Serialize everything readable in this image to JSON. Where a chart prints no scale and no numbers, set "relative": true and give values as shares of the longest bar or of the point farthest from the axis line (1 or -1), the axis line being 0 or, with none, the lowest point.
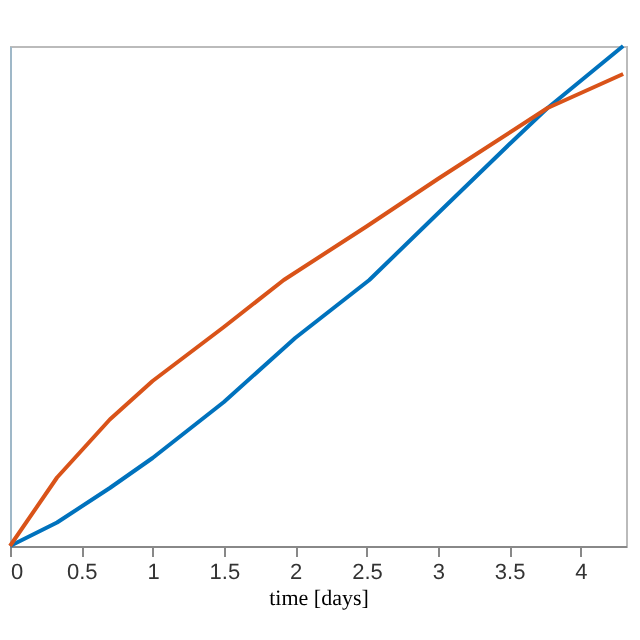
{
  "chart_data": {
    "type": "line",
    "xlabel": "time [days]",
    "relative": true,
    "xlim": [
      0,
      4.32
    ],
    "xticks": [
      0,
      0.5,
      1,
      1.5,
      2,
      2.5,
      3,
      3.5,
      4
    ],
    "grid": false,
    "legend": false,
    "marker": "none",
    "line_style": "solid",
    "series": [
      {
        "color": "#0072bd",
        "x": [
          0,
          0.33,
          0.7,
          1.0,
          1.5,
          2.0,
          2.52,
          3.0,
          3.5,
          3.77,
          4.3
        ],
        "values": [
          0,
          0.047,
          0.116,
          0.176,
          0.288,
          0.416,
          0.532,
          0.665,
          0.803,
          0.876,
          1
        ]
      },
      {
        "color": "#d95319",
        "x": [
          0,
          0.33,
          0.7,
          1.0,
          1.5,
          1.92,
          2.5,
          3.0,
          3.77,
          4.3
        ],
        "values": [
          0,
          0.137,
          0.253,
          0.33,
          0.438,
          0.532,
          0.639,
          0.734,
          0.876,
          0.944
        ]
      }
    ]
  }
}
